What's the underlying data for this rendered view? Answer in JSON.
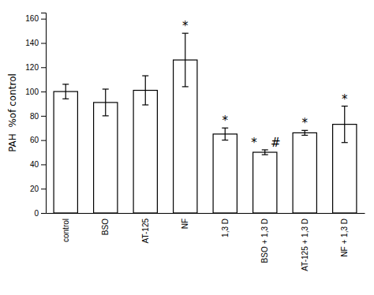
{
  "chart_data": {
    "type": "bar",
    "categories": [
      "control",
      "BSO",
      "AT-125",
      "NF",
      "1,3 D",
      "BSO + 1,3 D",
      "AT-125 + 1,3 D",
      "NF + 1,3 D"
    ],
    "values": [
      100,
      91,
      101,
      126,
      65,
      50,
      66,
      73
    ],
    "errors_upper": [
      6,
      11,
      12,
      22,
      5,
      2,
      2,
      15
    ],
    "errors_lower": [
      6,
      11,
      12,
      22,
      5,
      2,
      2,
      15
    ],
    "color": "#ffffff",
    "ylabel": "PAH  %of control",
    "ylim": [
      0,
      165
    ],
    "yticks": [
      0,
      20,
      40,
      60,
      80,
      100,
      120,
      140,
      160
    ],
    "annotations": [
      {
        "text": "*",
        "category": "NF"
      },
      {
        "text": "*",
        "category": "1,3 D"
      },
      {
        "text": "*",
        "category": "BSO + 1,3 D"
      },
      {
        "text": "#",
        "category": "BSO + 1,3 D"
      },
      {
        "text": "*",
        "category": "AT-125 + 1,3 D"
      },
      {
        "text": "*",
        "category": "NF + 1,3 D"
      }
    ]
  }
}
